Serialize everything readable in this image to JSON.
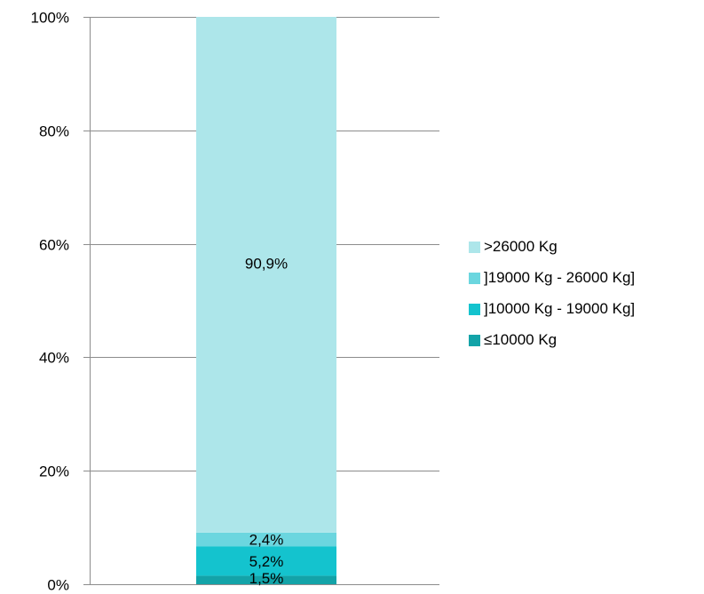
{
  "chart_data": {
    "type": "bar",
    "stacked": true,
    "percent_stacked": true,
    "categories": [
      ""
    ],
    "series": [
      {
        "name": "≤10000 Kg",
        "values": [
          1.5
        ],
        "label": "1,5%",
        "color": "#13A3A8"
      },
      {
        "name": "]10000 Kg - 19000 Kg]",
        "values": [
          5.2
        ],
        "label": "5,2%",
        "color": "#14C3CE"
      },
      {
        "name": "]19000 Kg - 26000 Kg]",
        "values": [
          2.4
        ],
        "label": "2,4%",
        "color": "#6BD6DF"
      },
      {
        "name": ">26000 Kg",
        "values": [
          90.9
        ],
        "label": "90,9%",
        "color": "#ADE6EA"
      }
    ],
    "ylim": [
      0,
      100
    ],
    "yticks": [
      "0%",
      "20%",
      "40%",
      "60%",
      "80%",
      "100%"
    ],
    "ytick_values": [
      0,
      20,
      40,
      60,
      80,
      100
    ],
    "grid": true,
    "legend_placement": "right",
    "legend_order": [
      ">26000 Kg",
      "]19000 Kg - 26000 Kg]",
      "]10000 Kg - 19000 Kg]",
      "≤10000 Kg"
    ]
  }
}
